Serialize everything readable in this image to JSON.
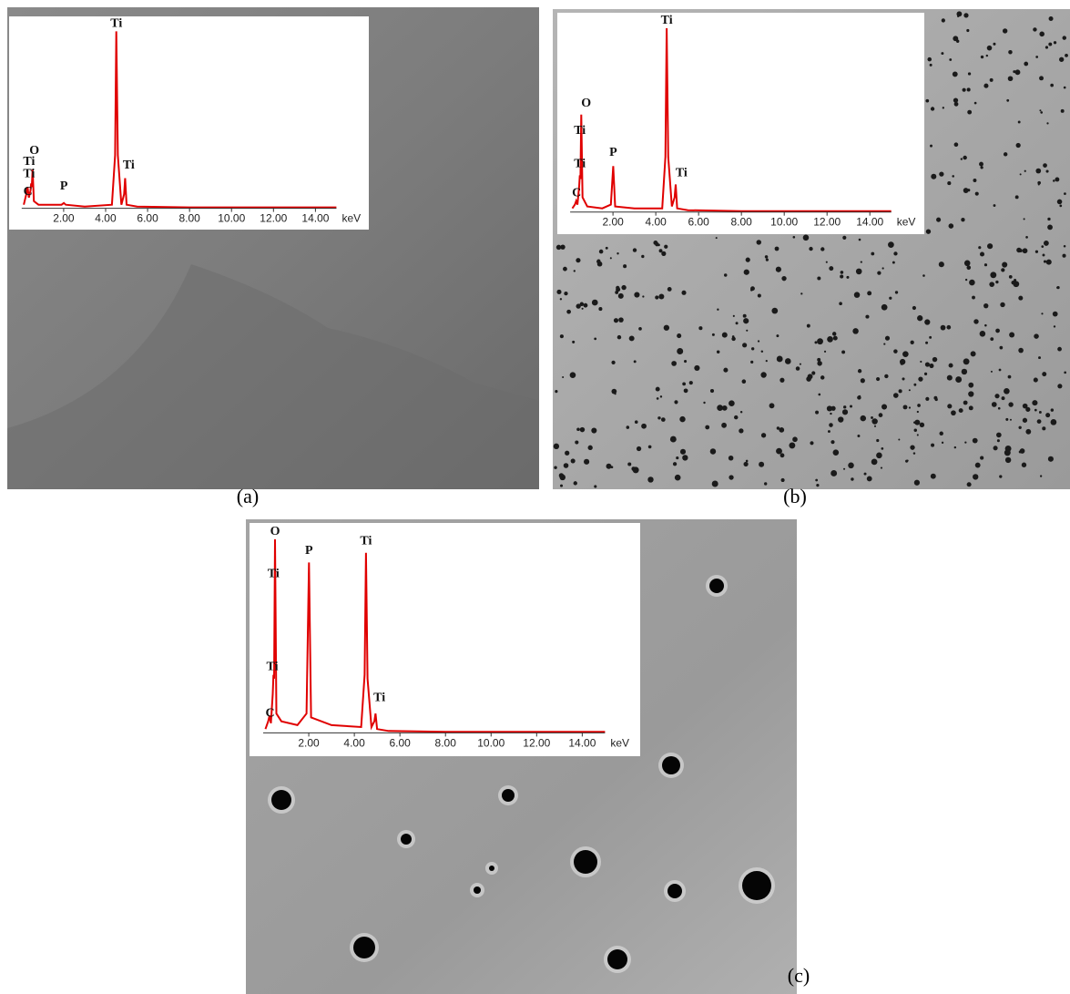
{
  "chart_data": [
    {
      "type": "line",
      "caption": "(a)",
      "x_label": "keV",
      "color": "#e00000",
      "xlim": [
        0,
        15
      ],
      "ylim": [
        0,
        100
      ],
      "xticks": [
        {
          "value": 2,
          "label": "2.00"
        },
        {
          "value": 4,
          "label": "4.00"
        },
        {
          "value": 6,
          "label": "6.00"
        },
        {
          "value": 8,
          "label": "8.00"
        },
        {
          "value": 10,
          "label": "10.00"
        },
        {
          "value": 12,
          "label": "12.00"
        },
        {
          "value": 14,
          "label": "14.00"
        }
      ],
      "x": [
        0.1,
        0.22,
        0.28,
        0.34,
        0.42,
        0.45,
        0.48,
        0.52,
        0.58,
        0.8,
        1.5,
        1.9,
        2.01,
        2.1,
        3.0,
        4.3,
        4.45,
        4.51,
        4.58,
        4.75,
        4.88,
        4.93,
        5.0,
        5.5,
        8,
        15
      ],
      "values": [
        2,
        8,
        12,
        6,
        10,
        14,
        12,
        22,
        4,
        2,
        2,
        2,
        3,
        2,
        1,
        2,
        30,
        100,
        30,
        2,
        8,
        17,
        2,
        1,
        0.5,
        0.5
      ],
      "annotations": [
        {
          "text": "Ti",
          "x": 4.51,
          "y": 100
        },
        {
          "text": "O",
          "x": 0.6,
          "y": 28
        },
        {
          "text": "Ti",
          "x": 0.35,
          "y": 22
        },
        {
          "text": "Ti",
          "x": 0.35,
          "y": 15
        },
        {
          "text": "C",
          "x": 0.3,
          "y": 5
        },
        {
          "text": "P",
          "x": 2.01,
          "y": 8
        },
        {
          "text": "Ti",
          "x": 5.1,
          "y": 20
        }
      ]
    },
    {
      "type": "line",
      "caption": "(b)",
      "x_label": "keV",
      "color": "#e00000",
      "xlim": [
        0,
        15
      ],
      "ylim": [
        0,
        100
      ],
      "xticks": [
        {
          "value": 2,
          "label": "2.00"
        },
        {
          "value": 4,
          "label": "4.00"
        },
        {
          "value": 6,
          "label": "6.00"
        },
        {
          "value": 8,
          "label": "8.00"
        },
        {
          "value": 10,
          "label": "10.00"
        },
        {
          "value": 12,
          "label": "12.00"
        },
        {
          "value": 14,
          "label": "14.00"
        }
      ],
      "x": [
        0.1,
        0.22,
        0.28,
        0.34,
        0.42,
        0.45,
        0.48,
        0.52,
        0.58,
        0.8,
        1.5,
        1.9,
        2.01,
        2.1,
        3.0,
        4.3,
        4.45,
        4.51,
        4.58,
        4.75,
        4.88,
        4.93,
        5.0,
        5.5,
        8,
        15
      ],
      "values": [
        2,
        4,
        6,
        4,
        14,
        20,
        18,
        53,
        8,
        3,
        2,
        4,
        25,
        3,
        2,
        2,
        30,
        100,
        30,
        3,
        8,
        15,
        2,
        1,
        0.5,
        0.5
      ],
      "annotations": [
        {
          "text": "Ti",
          "x": 4.51,
          "y": 100
        },
        {
          "text": "O",
          "x": 0.75,
          "y": 55
        },
        {
          "text": "Ti",
          "x": 0.45,
          "y": 40
        },
        {
          "text": "Ti",
          "x": 0.45,
          "y": 22
        },
        {
          "text": "C",
          "x": 0.3,
          "y": 6
        },
        {
          "text": "P",
          "x": 2.01,
          "y": 28
        },
        {
          "text": "Ti",
          "x": 5.2,
          "y": 17
        }
      ]
    },
    {
      "type": "line",
      "caption": "(c)",
      "x_label": "keV",
      "color": "#e00000",
      "xlim": [
        0,
        15
      ],
      "ylim": [
        0,
        100
      ],
      "xticks": [
        {
          "value": 2,
          "label": "2.00"
        },
        {
          "value": 4,
          "label": "4.00"
        },
        {
          "value": 6,
          "label": "6.00"
        },
        {
          "value": 8,
          "label": "8.00"
        },
        {
          "value": 10,
          "label": "10.00"
        },
        {
          "value": 12,
          "label": "12.00"
        },
        {
          "value": 14,
          "label": "14.00"
        }
      ],
      "x": [
        0.1,
        0.22,
        0.28,
        0.34,
        0.42,
        0.45,
        0.48,
        0.52,
        0.58,
        0.8,
        1.5,
        1.9,
        2.01,
        2.1,
        3.0,
        4.3,
        4.45,
        4.51,
        4.58,
        4.75,
        4.88,
        4.93,
        5.0,
        5.5,
        8,
        15
      ],
      "values": [
        2,
        6,
        9,
        5,
        20,
        30,
        28,
        100,
        10,
        6,
        4,
        10,
        88,
        8,
        4,
        3,
        30,
        93,
        28,
        3,
        6,
        10,
        2,
        1,
        0.5,
        0.5
      ],
      "annotations": [
        {
          "text": "O",
          "x": 0.52,
          "y": 100
        },
        {
          "text": "Ti",
          "x": 0.45,
          "y": 78
        },
        {
          "text": "P",
          "x": 2.01,
          "y": 90
        },
        {
          "text": "Ti",
          "x": 4.51,
          "y": 95
        },
        {
          "text": "Ti",
          "x": 0.4,
          "y": 30
        },
        {
          "text": "C",
          "x": 0.3,
          "y": 6
        },
        {
          "text": "Ti",
          "x": 5.1,
          "y": 14
        }
      ]
    }
  ]
}
